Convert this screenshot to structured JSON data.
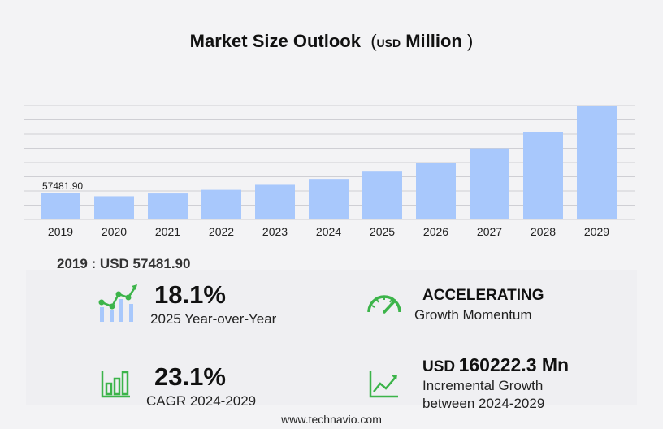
{
  "title": {
    "main": "Market Size Outlook",
    "unit_open": "(",
    "unit_small": "USD",
    "unit_main": "Million",
    "unit_close": ")"
  },
  "chart_data": {
    "type": "bar",
    "categories": [
      "2019",
      "2020",
      "2021",
      "2022",
      "2023",
      "2024",
      "2025",
      "2026",
      "2027",
      "2028",
      "2029"
    ],
    "values": [
      57481.9,
      51000,
      57000,
      65000,
      76000,
      89000,
      105000,
      124000,
      156000,
      192000,
      250000
    ],
    "data_labels": [
      "57481.90",
      "",
      "",
      "",
      "",
      "",
      "",
      "",
      "",
      "",
      ""
    ],
    "title": "Market Size Outlook (USD Million)",
    "xlabel": "",
    "ylabel": "",
    "ylim": [
      0,
      250000
    ],
    "grid": true,
    "bar_color": "#a8c8fc"
  },
  "base_year": {
    "text": "2019 : USD  57481.90"
  },
  "stats": {
    "yoy": {
      "value": "18.1%",
      "label": "2025 Year-over-Year"
    },
    "momentum": {
      "head": "ACCELERATING",
      "label": "Growth Momentum"
    },
    "cagr": {
      "value": "23.1%",
      "label": "CAGR 2024-2029"
    },
    "incremental": {
      "unit": "USD",
      "value": "160222.3 Mn",
      "label1": "Incremental Growth",
      "label2": "between 2024-2029"
    }
  },
  "icons": {
    "yoy": "bar-growth-icon",
    "momentum": "speedometer-icon",
    "cagr": "bar-chart-icon",
    "incremental": "line-growth-icon",
    "accent": "#3cb44a"
  },
  "footer": "www.technavio.com"
}
